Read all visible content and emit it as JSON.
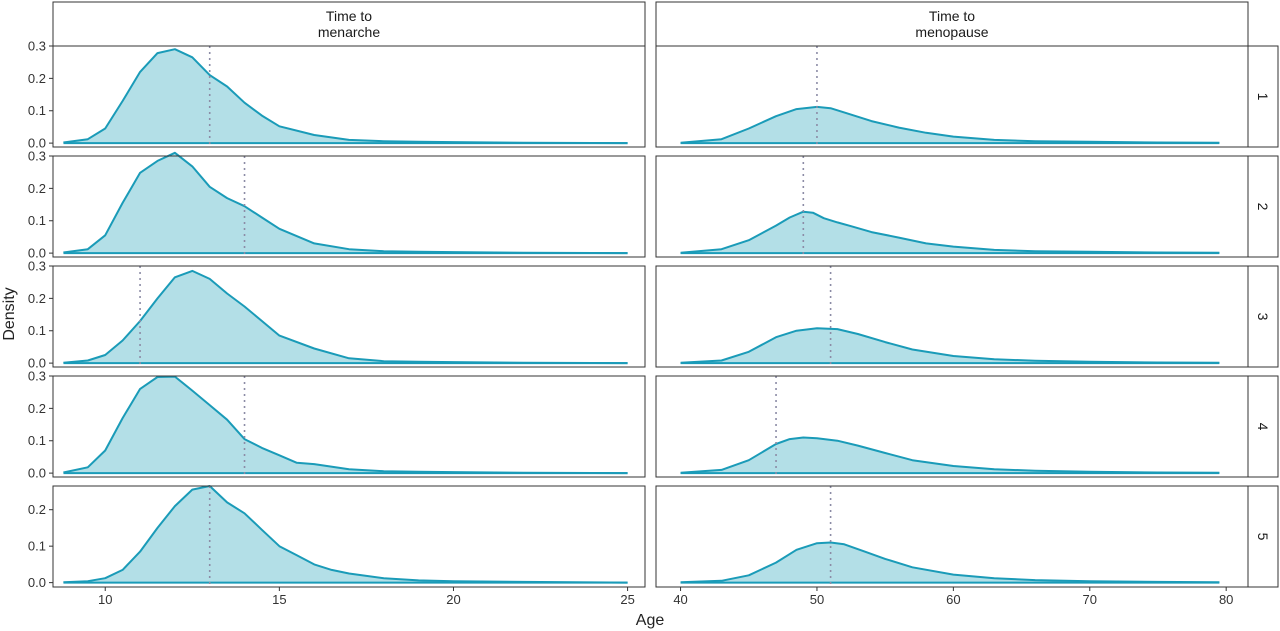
{
  "chart_data": {
    "type": "area",
    "subtype": "faceted-density",
    "xlabel": "Age",
    "ylabel": "Density",
    "fill_color": "#b3dfe7",
    "line_color": "#1a9bb8",
    "ref_line_color": "#8c8ca6",
    "strip_fill": "#ffffff",
    "columns": [
      {
        "title_lines": [
          "Time to",
          "menarche"
        ],
        "xlim": [
          8.5,
          25.5
        ],
        "xticks": [
          10,
          15,
          20,
          25
        ],
        "xtick_labels": [
          "10",
          "15",
          "20",
          "25"
        ]
      },
      {
        "title_lines": [
          "Time to",
          "menopause"
        ],
        "xlim": [
          38.2,
          81.6
        ],
        "xticks": [
          40,
          50,
          60,
          70,
          80
        ],
        "xtick_labels": [
          "40",
          "50",
          "60",
          "70",
          "80"
        ]
      }
    ],
    "rows": [
      {
        "label": "1",
        "ylim": [
          -0.012,
          0.3
        ],
        "yticks": [
          0,
          0.1,
          0.2,
          0.3
        ],
        "ytick_labels": [
          "0.0",
          "0.1",
          "0.2",
          "0.3"
        ]
      },
      {
        "label": "2",
        "ylim": [
          -0.012,
          0.3
        ],
        "yticks": [
          0,
          0.1,
          0.2,
          0.3
        ],
        "ytick_labels": [
          "0.0",
          "0.1",
          "0.2",
          "0.3"
        ]
      },
      {
        "label": "3",
        "ylim": [
          -0.012,
          0.3
        ],
        "yticks": [
          0,
          0.1,
          0.2,
          0.3
        ],
        "ytick_labels": [
          "0.0",
          "0.1",
          "0.2",
          "0.3"
        ]
      },
      {
        "label": "4",
        "ylim": [
          -0.012,
          0.3
        ],
        "yticks": [
          0,
          0.1,
          0.2,
          0.3
        ],
        "ytick_labels": [
          "0.0",
          "0.1",
          "0.2",
          "0.3"
        ]
      },
      {
        "label": "5",
        "ylim": [
          -0.012,
          0.265
        ],
        "yticks": [
          0,
          0.1,
          0.2
        ],
        "ytick_labels": [
          "0.0",
          "0.1",
          "0.2"
        ]
      }
    ],
    "panels": [
      {
        "row": 0,
        "col": 0,
        "ref_x": 13.0,
        "x": [
          8.8,
          9.5,
          10.0,
          10.5,
          11.0,
          11.5,
          12.0,
          12.5,
          13.0,
          13.5,
          14.0,
          14.5,
          15.0,
          16.0,
          17.0,
          18.0,
          19.0,
          20.0,
          22.0,
          25.0
        ],
        "y": [
          0.002,
          0.012,
          0.045,
          0.13,
          0.22,
          0.278,
          0.29,
          0.265,
          0.21,
          0.175,
          0.125,
          0.085,
          0.052,
          0.025,
          0.01,
          0.006,
          0.004,
          0.003,
          0.001,
          0.0
        ]
      },
      {
        "row": 0,
        "col": 1,
        "ref_x": 50.0,
        "x": [
          40.0,
          43.0,
          45.0,
          47.0,
          48.5,
          50.0,
          51.0,
          52.0,
          54.0,
          56.0,
          58.0,
          60.0,
          63.0,
          66.0,
          70.0,
          75.0,
          79.5
        ],
        "y": [
          0.001,
          0.012,
          0.045,
          0.083,
          0.105,
          0.112,
          0.108,
          0.095,
          0.068,
          0.048,
          0.032,
          0.02,
          0.01,
          0.006,
          0.004,
          0.002,
          0.001
        ]
      },
      {
        "row": 1,
        "col": 0,
        "ref_x": 14.0,
        "x": [
          8.8,
          9.5,
          10.0,
          10.5,
          11.0,
          11.5,
          12.0,
          12.5,
          13.0,
          13.5,
          14.0,
          14.5,
          15.0,
          16.0,
          17.0,
          18.0,
          19.0,
          20.0,
          22.0,
          25.0
        ],
        "y": [
          0.002,
          0.012,
          0.055,
          0.155,
          0.248,
          0.285,
          0.31,
          0.268,
          0.205,
          0.17,
          0.145,
          0.11,
          0.075,
          0.03,
          0.012,
          0.006,
          0.004,
          0.003,
          0.001,
          0.0
        ]
      },
      {
        "row": 1,
        "col": 1,
        "ref_x": 49.0,
        "x": [
          40.0,
          43.0,
          45.0,
          47.0,
          48.0,
          49.0,
          49.7,
          50.5,
          51.5,
          52.5,
          54.0,
          56.0,
          58.0,
          60.0,
          63.0,
          66.0,
          70.0,
          75.0,
          79.5
        ],
        "y": [
          0.001,
          0.012,
          0.04,
          0.085,
          0.11,
          0.128,
          0.125,
          0.108,
          0.095,
          0.083,
          0.065,
          0.048,
          0.03,
          0.02,
          0.01,
          0.006,
          0.004,
          0.002,
          0.001
        ]
      },
      {
        "row": 2,
        "col": 0,
        "ref_x": 11.0,
        "x": [
          8.8,
          9.5,
          10.0,
          10.5,
          11.0,
          11.5,
          12.0,
          12.5,
          13.0,
          13.5,
          14.0,
          14.5,
          15.0,
          16.0,
          17.0,
          18.0,
          19.0,
          20.0,
          22.0,
          25.0
        ],
        "y": [
          0.001,
          0.008,
          0.025,
          0.07,
          0.13,
          0.2,
          0.265,
          0.285,
          0.26,
          0.215,
          0.175,
          0.13,
          0.085,
          0.045,
          0.015,
          0.006,
          0.004,
          0.003,
          0.001,
          0.0
        ]
      },
      {
        "row": 2,
        "col": 1,
        "ref_x": 51.0,
        "x": [
          40.0,
          43.0,
          45.0,
          47.0,
          48.5,
          50.0,
          51.5,
          53.0,
          55.0,
          57.0,
          60.0,
          63.0,
          66.0,
          70.0,
          75.0,
          79.5
        ],
        "y": [
          0.001,
          0.008,
          0.035,
          0.08,
          0.1,
          0.108,
          0.105,
          0.09,
          0.065,
          0.042,
          0.022,
          0.012,
          0.007,
          0.004,
          0.002,
          0.001
        ]
      },
      {
        "row": 3,
        "col": 0,
        "ref_x": 14.0,
        "x": [
          8.8,
          9.5,
          10.0,
          10.5,
          11.0,
          11.5,
          12.0,
          12.5,
          13.0,
          13.5,
          14.0,
          14.5,
          15.0,
          15.5,
          16.0,
          17.0,
          18.0,
          19.0,
          20.0,
          22.0,
          25.0
        ],
        "y": [
          0.002,
          0.018,
          0.07,
          0.17,
          0.26,
          0.297,
          0.298,
          0.255,
          0.21,
          0.165,
          0.105,
          0.078,
          0.055,
          0.032,
          0.028,
          0.012,
          0.006,
          0.004,
          0.003,
          0.001,
          0.0
        ]
      },
      {
        "row": 3,
        "col": 1,
        "ref_x": 47.0,
        "x": [
          40.0,
          43.0,
          45.0,
          47.0,
          48.0,
          49.0,
          50.0,
          51.5,
          53.0,
          55.0,
          57.0,
          60.0,
          63.0,
          66.0,
          70.0,
          75.0,
          79.5
        ],
        "y": [
          0.001,
          0.01,
          0.04,
          0.09,
          0.105,
          0.11,
          0.108,
          0.1,
          0.085,
          0.062,
          0.04,
          0.022,
          0.012,
          0.007,
          0.004,
          0.002,
          0.001
        ]
      },
      {
        "row": 4,
        "col": 0,
        "ref_x": 13.0,
        "x": [
          8.8,
          9.5,
          10.0,
          10.5,
          11.0,
          11.5,
          12.0,
          12.5,
          13.0,
          13.5,
          14.0,
          14.5,
          15.0,
          15.5,
          16.0,
          16.5,
          17.0,
          18.0,
          19.0,
          20.0,
          22.0,
          25.0
        ],
        "y": [
          0.001,
          0.004,
          0.012,
          0.035,
          0.085,
          0.15,
          0.21,
          0.255,
          0.265,
          0.22,
          0.19,
          0.145,
          0.1,
          0.075,
          0.05,
          0.035,
          0.025,
          0.012,
          0.006,
          0.004,
          0.002,
          0.0
        ]
      },
      {
        "row": 4,
        "col": 1,
        "ref_x": 51.0,
        "x": [
          40.0,
          43.0,
          45.0,
          47.0,
          48.5,
          50.0,
          51.0,
          52.0,
          53.5,
          55.0,
          57.0,
          60.0,
          63.0,
          66.0,
          70.0,
          75.0,
          79.5
        ],
        "y": [
          0.001,
          0.005,
          0.02,
          0.055,
          0.09,
          0.108,
          0.11,
          0.105,
          0.085,
          0.065,
          0.042,
          0.022,
          0.012,
          0.007,
          0.004,
          0.002,
          0.001
        ]
      }
    ]
  }
}
